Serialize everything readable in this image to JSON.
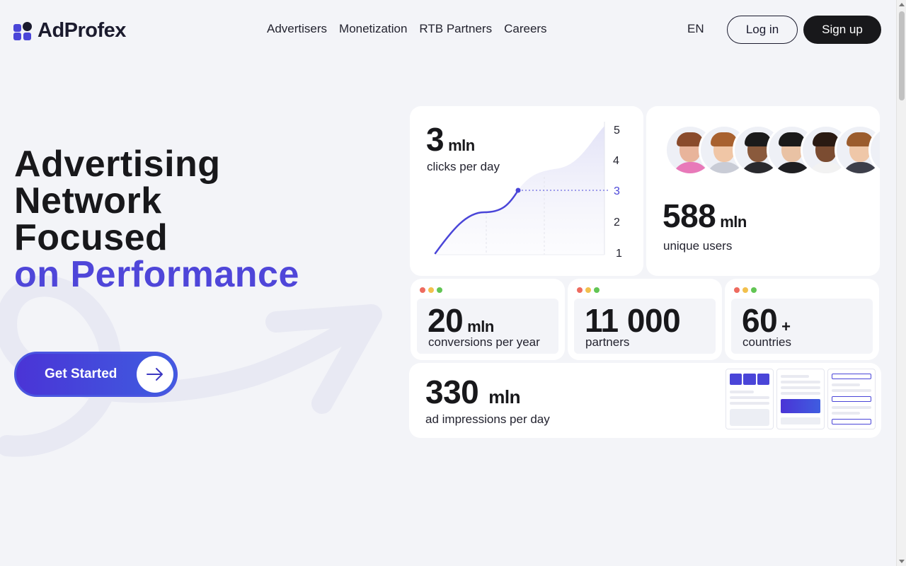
{
  "header": {
    "brand": "AdProfex",
    "nav": [
      "Advertisers",
      "Monetization",
      "RTB Partners",
      "Careers"
    ],
    "language": "EN",
    "login_label": "Log in",
    "signup_label": "Sign up"
  },
  "hero": {
    "line1": "Advertising",
    "line2": "Network",
    "line3": "Focused",
    "line4": "on Performance",
    "cta_label": "Get Started"
  },
  "stats": {
    "clicks": {
      "value": "3",
      "unit": "mln",
      "label": "clicks per day"
    },
    "users": {
      "value": "588",
      "unit": "mln",
      "label": "unique users"
    },
    "conversions": {
      "value": "20",
      "unit": "mln",
      "label": "conversions per year"
    },
    "partners": {
      "value": "11 000",
      "label": "partners"
    },
    "countries": {
      "value": "60",
      "unit": "+",
      "label": "countries"
    },
    "impressions": {
      "value": "330",
      "unit": "mln",
      "label": "ad impressions per day"
    }
  },
  "clicks_chart": {
    "y_ticks": [
      "5",
      "4",
      "3",
      "2",
      "1"
    ],
    "line_color": "#4a45d8"
  },
  "colors": {
    "accent": "#4f46d9",
    "dark": "#18181b",
    "dot_red": "#ee6b5f",
    "dot_yellow": "#f2c04d",
    "dot_green": "#62c554"
  }
}
